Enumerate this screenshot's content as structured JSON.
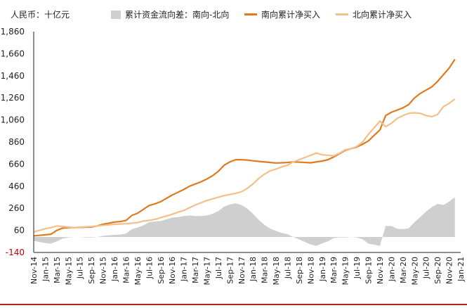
{
  "header": {
    "unit_label": "人民币：十亿元",
    "legend": [
      {
        "label": "累计资金流向差：南向-北向",
        "kind": "area",
        "color": "#cfcfcf"
      },
      {
        "label": "南向累计净买入",
        "kind": "line",
        "color": "#e07a1f"
      },
      {
        "label": "北向累计净买入",
        "kind": "line",
        "color": "#f4bf8a"
      }
    ]
  },
  "colors": {
    "southbound": "#e07a1f",
    "northbound": "#f4bf8a",
    "difference_area": "#cfcfcf",
    "negative_tick": "#c00000",
    "axis": "#222222",
    "bottom_rule": "#b32020"
  },
  "chart_data": {
    "type": "line",
    "y_ticks": [
      -140,
      60,
      260,
      460,
      660,
      860,
      1060,
      1260,
      1460,
      1660,
      1860
    ],
    "ylim": [
      -140,
      1860
    ],
    "x_tick_labels": [
      "Nov-14",
      "Jan-15",
      "Mar-15",
      "May-15",
      "Jul-15",
      "Sep-15",
      "Nov-15",
      "Jan-16",
      "Mar-16",
      "May-16",
      "Jul-16",
      "Sep-16",
      "Nov-16",
      "Jan-17",
      "Mar-17",
      "May-17",
      "Jul-17",
      "Sep-17",
      "Nov-17",
      "Jan-18",
      "Mar-18",
      "May-18",
      "Jul-18",
      "Sep-18",
      "Nov-18",
      "Jan-19",
      "Mar-19",
      "May-19",
      "Jul-19",
      "Sep-19",
      "Nov-19",
      "Jan-20",
      "Mar-20",
      "May-20",
      "Jul-20",
      "Sep-20",
      "Nov-20",
      "Jan-21"
    ],
    "series": [
      {
        "name": "南向累计净买入",
        "kind": "line",
        "values": [
          [
            0,
            10
          ],
          [
            1,
            15
          ],
          [
            2,
            20
          ],
          [
            3,
            25
          ],
          [
            4,
            60
          ],
          [
            5,
            80
          ],
          [
            6,
            85
          ],
          [
            7,
            85
          ],
          [
            8,
            87
          ],
          [
            9,
            88
          ],
          [
            10,
            90
          ],
          [
            11,
            100
          ],
          [
            12,
            115
          ],
          [
            13,
            125
          ],
          [
            14,
            135
          ],
          [
            15,
            140
          ],
          [
            16,
            150
          ],
          [
            17,
            195
          ],
          [
            18,
            215
          ],
          [
            19,
            250
          ],
          [
            20,
            285
          ],
          [
            21,
            300
          ],
          [
            22,
            320
          ],
          [
            23,
            350
          ],
          [
            24,
            380
          ],
          [
            25,
            405
          ],
          [
            26,
            430
          ],
          [
            27,
            460
          ],
          [
            28,
            480
          ],
          [
            29,
            500
          ],
          [
            30,
            525
          ],
          [
            31,
            555
          ],
          [
            32,
            595
          ],
          [
            33,
            650
          ],
          [
            34,
            680
          ],
          [
            35,
            700
          ],
          [
            36,
            700
          ],
          [
            37,
            697
          ],
          [
            38,
            690
          ],
          [
            39,
            685
          ],
          [
            40,
            680
          ],
          [
            41,
            675
          ],
          [
            42,
            670
          ],
          [
            43,
            672
          ],
          [
            44,
            675
          ],
          [
            45,
            680
          ],
          [
            46,
            678
          ],
          [
            47,
            675
          ],
          [
            48,
            672
          ],
          [
            49,
            680
          ],
          [
            50,
            688
          ],
          [
            51,
            700
          ],
          [
            52,
            725
          ],
          [
            53,
            755
          ],
          [
            54,
            785
          ],
          [
            55,
            800
          ],
          [
            56,
            815
          ],
          [
            57,
            840
          ],
          [
            58,
            870
          ],
          [
            59,
            920
          ],
          [
            60,
            970
          ],
          [
            61,
            1100
          ],
          [
            62,
            1130
          ],
          [
            63,
            1150
          ],
          [
            64,
            1170
          ],
          [
            65,
            1200
          ],
          [
            66,
            1260
          ],
          [
            67,
            1300
          ],
          [
            68,
            1330
          ],
          [
            69,
            1360
          ],
          [
            70,
            1410
          ],
          [
            71,
            1470
          ],
          [
            72,
            1530
          ],
          [
            73,
            1610
          ]
        ]
      },
      {
        "name": "北向累计净买入",
        "kind": "line",
        "values": [
          [
            0,
            45
          ],
          [
            1,
            60
          ],
          [
            2,
            75
          ],
          [
            3,
            85
          ],
          [
            4,
            100
          ],
          [
            5,
            95
          ],
          [
            6,
            90
          ],
          [
            7,
            85
          ],
          [
            8,
            88
          ],
          [
            9,
            92
          ],
          [
            10,
            95
          ],
          [
            11,
            100
          ],
          [
            12,
            105
          ],
          [
            13,
            110
          ],
          [
            14,
            115
          ],
          [
            15,
            118
          ],
          [
            16,
            120
          ],
          [
            17,
            125
          ],
          [
            18,
            130
          ],
          [
            19,
            145
          ],
          [
            20,
            150
          ],
          [
            21,
            160
          ],
          [
            22,
            175
          ],
          [
            23,
            190
          ],
          [
            24,
            205
          ],
          [
            25,
            225
          ],
          [
            26,
            240
          ],
          [
            27,
            265
          ],
          [
            28,
            290
          ],
          [
            29,
            310
          ],
          [
            30,
            330
          ],
          [
            31,
            345
          ],
          [
            32,
            360
          ],
          [
            33,
            375
          ],
          [
            34,
            385
          ],
          [
            35,
            395
          ],
          [
            36,
            410
          ],
          [
            37,
            440
          ],
          [
            38,
            480
          ],
          [
            39,
            530
          ],
          [
            40,
            570
          ],
          [
            41,
            600
          ],
          [
            42,
            615
          ],
          [
            43,
            635
          ],
          [
            44,
            650
          ],
          [
            45,
            680
          ],
          [
            46,
            700
          ],
          [
            47,
            720
          ],
          [
            48,
            740
          ],
          [
            49,
            760
          ],
          [
            50,
            745
          ],
          [
            51,
            740
          ],
          [
            52,
            735
          ],
          [
            53,
            760
          ],
          [
            54,
            790
          ],
          [
            55,
            800
          ],
          [
            56,
            820
          ],
          [
            57,
            860
          ],
          [
            58,
            930
          ],
          [
            59,
            990
          ],
          [
            60,
            1050
          ],
          [
            61,
            1000
          ],
          [
            62,
            1030
          ],
          [
            63,
            1075
          ],
          [
            64,
            1100
          ],
          [
            65,
            1120
          ],
          [
            66,
            1125
          ],
          [
            67,
            1120
          ],
          [
            68,
            1100
          ],
          [
            69,
            1090
          ],
          [
            70,
            1110
          ],
          [
            71,
            1180
          ],
          [
            72,
            1210
          ],
          [
            73,
            1250
          ]
        ]
      },
      {
        "name": "累计资金流向差：南向-北向",
        "kind": "area",
        "values": [
          [
            0,
            -35
          ],
          [
            1,
            -45
          ],
          [
            2,
            -55
          ],
          [
            3,
            -60
          ],
          [
            4,
            -40
          ],
          [
            5,
            -15
          ],
          [
            6,
            -5
          ],
          [
            7,
            0
          ],
          [
            8,
            -1
          ],
          [
            9,
            -4
          ],
          [
            10,
            -5
          ],
          [
            11,
            0
          ],
          [
            12,
            10
          ],
          [
            13,
            15
          ],
          [
            14,
            20
          ],
          [
            15,
            22
          ],
          [
            16,
            30
          ],
          [
            17,
            70
          ],
          [
            18,
            85
          ],
          [
            19,
            105
          ],
          [
            20,
            135
          ],
          [
            21,
            140
          ],
          [
            22,
            145
          ],
          [
            23,
            160
          ],
          [
            24,
            175
          ],
          [
            25,
            180
          ],
          [
            26,
            190
          ],
          [
            27,
            195
          ],
          [
            28,
            190
          ],
          [
            29,
            190
          ],
          [
            30,
            195
          ],
          [
            31,
            210
          ],
          [
            32,
            235
          ],
          [
            33,
            275
          ],
          [
            34,
            295
          ],
          [
            35,
            305
          ],
          [
            36,
            290
          ],
          [
            37,
            257
          ],
          [
            38,
            210
          ],
          [
            39,
            155
          ],
          [
            40,
            110
          ],
          [
            41,
            75
          ],
          [
            42,
            55
          ],
          [
            43,
            37
          ],
          [
            44,
            25
          ],
          [
            45,
            0
          ],
          [
            46,
            -22
          ],
          [
            47,
            -45
          ],
          [
            48,
            -68
          ],
          [
            49,
            -80
          ],
          [
            50,
            -57
          ],
          [
            51,
            -40
          ],
          [
            52,
            -10
          ],
          [
            53,
            -5
          ],
          [
            54,
            -5
          ],
          [
            55,
            0
          ],
          [
            56,
            -5
          ],
          [
            57,
            -20
          ],
          [
            58,
            -60
          ],
          [
            59,
            -70
          ],
          [
            60,
            -80
          ],
          [
            61,
            100
          ],
          [
            62,
            100
          ],
          [
            63,
            75
          ],
          [
            64,
            70
          ],
          [
            65,
            80
          ],
          [
            66,
            135
          ],
          [
            67,
            180
          ],
          [
            68,
            230
          ],
          [
            69,
            270
          ],
          [
            70,
            300
          ],
          [
            71,
            290
          ],
          [
            72,
            320
          ],
          [
            73,
            360
          ]
        ]
      }
    ]
  }
}
